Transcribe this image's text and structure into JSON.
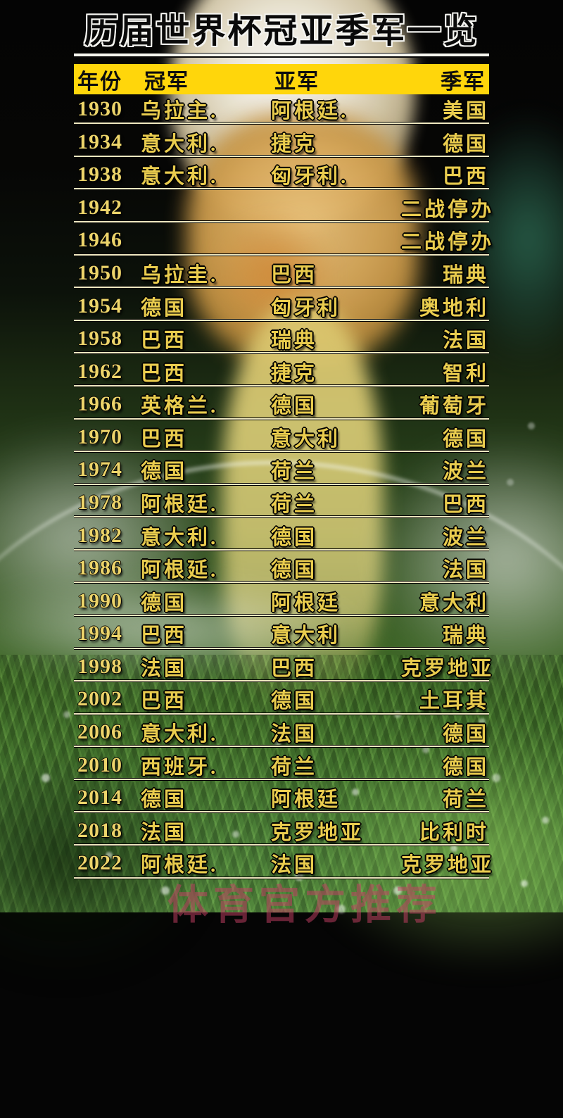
{
  "page": {
    "title": "历届世界杯冠亚季军一览",
    "watermark": "体育官方推荐"
  },
  "table": {
    "headers": [
      "年份",
      "冠军",
      "亚军",
      "季军"
    ],
    "rows": [
      {
        "year": "1930",
        "champion": "乌拉主.",
        "runner_up": "阿根廷.",
        "third": "美国"
      },
      {
        "year": "1934",
        "champion": "意大利.",
        "runner_up": "捷克",
        "third": "德国"
      },
      {
        "year": "1938",
        "champion": "意大利.",
        "runner_up": "匈牙利.",
        "third": "巴西"
      },
      {
        "year": "1942",
        "champion": "",
        "runner_up": "",
        "third": "二战停办"
      },
      {
        "year": "1946",
        "champion": "",
        "runner_up": "",
        "third": "二战停办"
      },
      {
        "year": "1950",
        "champion": "乌拉圭.",
        "runner_up": "巴西",
        "third": "瑞典"
      },
      {
        "year": "1954",
        "champion": "德国",
        "runner_up": "匈牙利",
        "third": "奥地利"
      },
      {
        "year": "1958",
        "champion": "巴西",
        "runner_up": "瑞典",
        "third": "法国"
      },
      {
        "year": "1962",
        "champion": "巴西",
        "runner_up": "捷克",
        "third": "智利"
      },
      {
        "year": "1966",
        "champion": "英格兰.",
        "runner_up": "德国",
        "third": "葡萄牙"
      },
      {
        "year": "1970",
        "champion": "巴西",
        "runner_up": "意大利",
        "third": "德国"
      },
      {
        "year": "1974",
        "champion": "德国",
        "runner_up": "荷兰",
        "third": "波兰"
      },
      {
        "year": "1978",
        "champion": "阿根廷.",
        "runner_up": "荷兰",
        "third": "巴西"
      },
      {
        "year": "1982",
        "champion": "意大利.",
        "runner_up": "德国",
        "third": "波兰"
      },
      {
        "year": "1986",
        "champion": "阿根延.",
        "runner_up": "德国",
        "third": "法国"
      },
      {
        "year": "1990",
        "champion": "德国",
        "runner_up": "阿根廷",
        "third": "意大利"
      },
      {
        "year": "1994",
        "champion": "巴西",
        "runner_up": "意大利",
        "third": "瑞典"
      },
      {
        "year": "1998",
        "champion": "法国",
        "runner_up": "巴西",
        "third": "克罗地亚"
      },
      {
        "year": "2002",
        "champion": "巴西",
        "runner_up": "德国",
        "third": "土耳其"
      },
      {
        "year": "2006",
        "champion": "意大利.",
        "runner_up": "法国",
        "third": "德国"
      },
      {
        "year": "2010",
        "champion": "西班牙.",
        "runner_up": "荷兰",
        "third": "德国"
      },
      {
        "year": "2014",
        "champion": "德国",
        "runner_up": "阿根廷",
        "third": "荷兰"
      },
      {
        "year": "2018",
        "champion": "法国",
        "runner_up": "克罗地亚",
        "third": "比利时"
      },
      {
        "year": "2022",
        "champion": "阿根廷.",
        "runner_up": "法国",
        "third": "克罗地亚"
      }
    ]
  },
  "colors": {
    "header_bar": "#ffd60b",
    "header_text": "#0d0d0d",
    "row_text_gold": "#e9cc4e",
    "year_text_gold": "#ecd46a",
    "title_text": "#0a0a0a",
    "title_outline": "#f4f4f0",
    "row_divider": "#efe8c0",
    "watermark_pink": "#c34064"
  }
}
